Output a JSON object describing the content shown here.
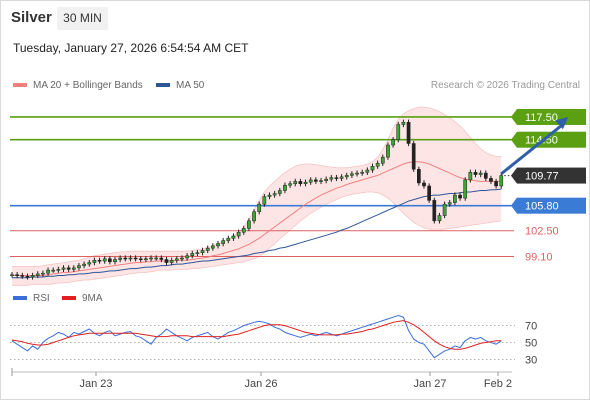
{
  "header": {
    "title": "Silver",
    "timeframe": "30 MIN",
    "datetime": "Tuesday, January 27, 2026 6:54:54 AM CET"
  },
  "legend": {
    "ma20_label": "MA 20 + Bollinger Bands",
    "ma50_label": "MA 50",
    "credit": "Research © 2026 Trading Central",
    "rsi_label": "RSI",
    "ma9_label": "9MA"
  },
  "colors": {
    "ma20": "#f08080",
    "ma50": "#2f5597",
    "band_fill": "#fde0e0",
    "resistance": "#5aa012",
    "pivot": "#3a7bd5",
    "support": "#e06060",
    "arrow": "#2e5fa8",
    "last_price_bg": "#333333",
    "rsi": "#3a6fd8",
    "rsi_ma": "#e02020",
    "candle": "#3aa635"
  },
  "chart_data": [
    {
      "type": "line",
      "title": "",
      "subtitle": "",
      "xlabel": "",
      "ylabel": "",
      "x_ticks": [
        "Jan 23",
        "Jan 26",
        "Jan 27",
        "Feb 2"
      ],
      "ylim": [
        96,
        120
      ],
      "grid": false,
      "last_price": 109.77,
      "levels": [
        {
          "value": 117.5,
          "label": "117.50",
          "kind": "resistance",
          "boxed": true
        },
        {
          "value": 114.5,
          "label": "114.50",
          "kind": "resistance",
          "boxed": true
        },
        {
          "value": 105.8,
          "label": "105.80",
          "kind": "pivot",
          "boxed": true
        },
        {
          "value": 102.5,
          "label": "102.50",
          "kind": "support",
          "boxed": false
        },
        {
          "value": 99.1,
          "label": "99.10",
          "kind": "support",
          "boxed": false
        }
      ],
      "forecast_arrow": {
        "from": [
          95,
          110.0
        ],
        "to": [
          108,
          117.5
        ]
      },
      "closes": [
        96.7,
        96.6,
        96.5,
        96.4,
        96.6,
        96.8,
        96.9,
        97.3,
        97.3,
        97.4,
        97.6,
        97.4,
        97.6,
        97.9,
        98.1,
        98.3,
        98.6,
        98.5,
        98.8,
        98.4,
        98.7,
        98.9,
        98.8,
        98.9,
        98.8,
        98.7,
        98.8,
        98.9,
        98.9,
        98.7,
        98.3,
        98.6,
        98.8,
        98.9,
        99.2,
        99.5,
        99.6,
        99.9,
        100.2,
        100.5,
        100.8,
        101.2,
        101.5,
        101.8,
        102.3,
        102.8,
        103.8,
        105.0,
        106.0,
        107.0,
        107.2,
        107.4,
        107.8,
        108.5,
        108.7,
        109.0,
        108.7,
        108.9,
        109.2,
        109.0,
        109.1,
        109.3,
        109.5,
        109.4,
        109.6,
        109.8,
        110.0,
        110.1,
        110.2,
        110.5,
        111.0,
        111.4,
        112.2,
        113.8,
        114.5,
        116.5,
        116.8,
        114.0,
        110.6,
        108.8,
        108.4,
        106.5,
        103.8,
        104.5,
        106.0,
        106.2,
        107.2,
        106.8,
        109.2,
        110.2,
        109.9,
        110.1,
        109.4,
        109.0,
        108.4,
        109.77
      ],
      "ma20": [
        96.6,
        96.6,
        96.6,
        96.6,
        96.6,
        96.6,
        96.6,
        96.7,
        96.8,
        96.9,
        97.0,
        97.0,
        97.1,
        97.2,
        97.3,
        97.4,
        97.5,
        97.6,
        97.7,
        97.8,
        97.9,
        98.0,
        98.1,
        98.2,
        98.3,
        98.3,
        98.4,
        98.4,
        98.5,
        98.5,
        98.5,
        98.5,
        98.6,
        98.6,
        98.6,
        98.7,
        98.8,
        98.9,
        99.0,
        99.2,
        99.3,
        99.5,
        99.7,
        99.9,
        100.1,
        100.4,
        100.7,
        101.1,
        101.5,
        102.0,
        102.5,
        103.0,
        103.5,
        104.0,
        104.5,
        105.0,
        105.5,
        106.0,
        106.4,
        106.8,
        107.2,
        107.5,
        107.8,
        108.1,
        108.3,
        108.6,
        108.8,
        109.0,
        109.2,
        109.4,
        109.6,
        109.8,
        110.1,
        110.4,
        110.7,
        111.0,
        111.3,
        111.5,
        111.6,
        111.6,
        111.5,
        111.3,
        111.0,
        110.7,
        110.4,
        110.1,
        109.8,
        109.5,
        109.3,
        109.2,
        109.1,
        109.0,
        109.0,
        109.0,
        109.0,
        109.0
      ],
      "ma50": [
        96.3,
        96.3,
        96.3,
        96.3,
        96.4,
        96.4,
        96.4,
        96.5,
        96.5,
        96.6,
        96.6,
        96.7,
        96.7,
        96.8,
        96.8,
        96.9,
        97.0,
        97.0,
        97.1,
        97.2,
        97.2,
        97.3,
        97.4,
        97.5,
        97.5,
        97.6,
        97.7,
        97.7,
        97.8,
        97.9,
        97.9,
        98.0,
        98.1,
        98.1,
        98.2,
        98.3,
        98.4,
        98.5,
        98.5,
        98.6,
        98.7,
        98.8,
        98.9,
        99.0,
        99.1,
        99.2,
        99.3,
        99.5,
        99.6,
        99.7,
        99.9,
        100.0,
        100.2,
        100.3,
        100.5,
        100.7,
        100.9,
        101.1,
        101.3,
        101.5,
        101.7,
        101.9,
        102.1,
        102.3,
        102.6,
        102.8,
        103.1,
        103.4,
        103.7,
        104.0,
        104.3,
        104.6,
        104.9,
        105.2,
        105.5,
        105.8,
        106.1,
        106.4,
        106.6,
        106.8,
        107.0,
        107.1,
        107.2,
        107.2,
        107.3,
        107.4,
        107.4,
        107.5,
        107.6,
        107.6,
        107.7,
        107.8,
        107.8,
        107.9,
        107.9,
        108.0
      ],
      "band_upper": [
        97.8,
        97.8,
        97.8,
        97.8,
        97.8,
        97.8,
        97.9,
        98.0,
        98.1,
        98.2,
        98.3,
        98.4,
        98.5,
        98.6,
        98.8,
        99.0,
        99.2,
        99.3,
        99.4,
        99.5,
        99.6,
        99.7,
        99.7,
        99.8,
        99.8,
        99.8,
        99.8,
        99.8,
        99.8,
        99.8,
        99.8,
        99.8,
        99.8,
        99.8,
        99.8,
        99.9,
        100.0,
        100.1,
        100.3,
        100.5,
        100.8,
        101.1,
        101.4,
        101.8,
        102.3,
        103.0,
        104.0,
        105.2,
        106.5,
        107.6,
        108.4,
        109.0,
        109.6,
        110.2,
        110.6,
        111.0,
        111.2,
        111.3,
        111.3,
        111.2,
        111.1,
        111.0,
        110.9,
        110.8,
        110.8,
        110.8,
        110.9,
        111.0,
        111.1,
        111.3,
        111.6,
        112.2,
        113.2,
        114.5,
        116.0,
        117.2,
        117.9,
        118.3,
        118.6,
        118.8,
        118.8,
        118.7,
        118.5,
        118.2,
        117.8,
        117.4,
        116.9,
        116.3,
        115.6,
        114.8,
        114.0,
        113.3,
        112.8,
        112.5,
        112.3,
        112.3
      ],
      "band_lower": [
        95.3,
        95.3,
        95.3,
        95.3,
        95.4,
        95.4,
        95.4,
        95.4,
        95.5,
        95.6,
        95.6,
        95.7,
        95.8,
        95.9,
        96.0,
        96.0,
        96.1,
        96.2,
        96.3,
        96.4,
        96.5,
        96.6,
        96.7,
        96.8,
        96.9,
        97.0,
        97.0,
        97.1,
        97.2,
        97.3,
        97.3,
        97.3,
        97.4,
        97.4,
        97.4,
        97.5,
        97.5,
        97.6,
        97.7,
        97.8,
        97.9,
        98.0,
        98.1,
        98.2,
        98.3,
        98.4,
        98.6,
        98.8,
        99.1,
        99.6,
        100.2,
        100.8,
        101.4,
        102.0,
        102.6,
        103.2,
        103.8,
        104.3,
        104.8,
        105.2,
        105.6,
        106.0,
        106.3,
        106.6,
        106.9,
        107.1,
        107.3,
        107.4,
        107.5,
        107.6,
        107.6,
        107.5,
        107.2,
        106.8,
        106.2,
        105.5,
        104.8,
        104.2,
        103.6,
        103.2,
        102.9,
        102.7,
        102.6,
        102.6,
        102.7,
        102.8,
        102.9,
        103.0,
        103.1,
        103.2,
        103.3,
        103.4,
        103.5,
        103.6,
        103.7,
        103.8
      ]
    },
    {
      "type": "line",
      "title": "",
      "xlabel": "",
      "ylabel": "",
      "ylim": [
        15,
        85
      ],
      "y_ticks": [
        70,
        50,
        30
      ],
      "series": [
        {
          "name": "RSI",
          "values": [
            52,
            48,
            44,
            40,
            46,
            42,
            50,
            55,
            58,
            62,
            60,
            56,
            62,
            60,
            63,
            66,
            61,
            58,
            62,
            64,
            58,
            60,
            62,
            63,
            58,
            56,
            52,
            48,
            56,
            60,
            66,
            62,
            58,
            55,
            52,
            56,
            58,
            60,
            62,
            57,
            54,
            58,
            62,
            64,
            67,
            70,
            72,
            74,
            75,
            74,
            72,
            68,
            66,
            62,
            60,
            58,
            56,
            58,
            60,
            58,
            60,
            62,
            60,
            58,
            60,
            62,
            64,
            66,
            68,
            70,
            72,
            74,
            76,
            78,
            80,
            82,
            80,
            64,
            54,
            50,
            48,
            40,
            32,
            36,
            40,
            42,
            46,
            44,
            52,
            56,
            54,
            56,
            52,
            50,
            48,
            52
          ]
        },
        {
          "name": "9MA",
          "values": [
            53,
            52,
            51,
            49,
            48,
            47,
            47,
            48,
            50,
            52,
            54,
            56,
            58,
            59,
            60,
            61,
            61,
            61,
            61,
            61,
            61,
            61,
            61,
            61,
            61,
            60,
            59,
            58,
            57,
            57,
            57,
            58,
            58,
            58,
            58,
            57,
            57,
            57,
            57,
            57,
            57,
            57,
            58,
            59,
            60,
            62,
            64,
            66,
            68,
            70,
            71,
            71,
            71,
            70,
            68,
            66,
            64,
            62,
            61,
            60,
            59,
            59,
            59,
            59,
            60,
            60,
            61,
            62,
            63,
            65,
            66,
            68,
            70,
            72,
            74,
            75,
            76,
            74,
            71,
            67,
            62,
            57,
            52,
            48,
            45,
            43,
            42,
            42,
            43,
            45,
            47,
            49,
            50,
            51,
            52,
            52
          ]
        }
      ]
    }
  ]
}
